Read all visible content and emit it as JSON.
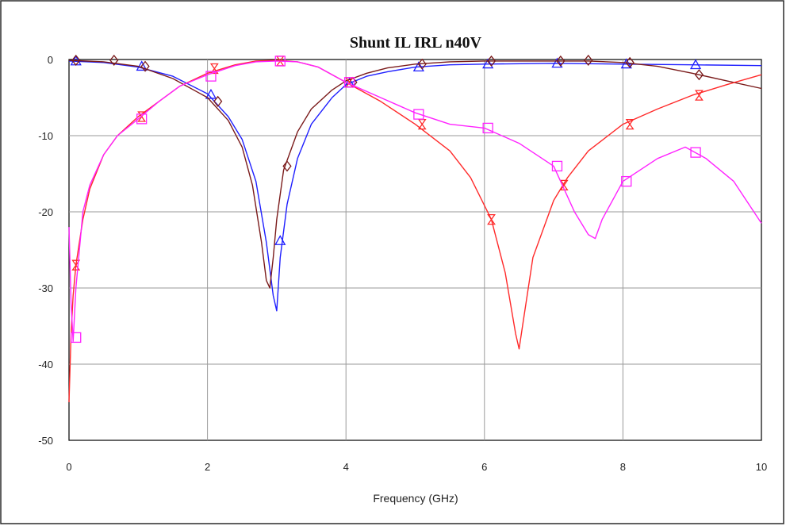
{
  "chart_data": {
    "type": "line",
    "title": "Shunt IL IRL n40V",
    "xlabel": "Frequency (GHz)",
    "ylabel": "",
    "xlim": [
      0,
      10
    ],
    "ylim": [
      -50,
      0
    ],
    "x_ticks": [
      "0",
      "2",
      "4",
      "6",
      "8",
      "10"
    ],
    "y_ticks": [
      "0",
      "-10",
      "-20",
      "-30",
      "-40",
      "-50"
    ],
    "grid": true,
    "legend": "none",
    "series": [
      {
        "color": "#1f1fff",
        "marker": "triangle",
        "x": [
          0,
          0.5,
          1.0,
          1.5,
          2.0,
          2.3,
          2.5,
          2.7,
          2.85,
          2.95,
          3.0,
          3.05,
          3.15,
          3.3,
          3.5,
          3.8,
          4.0,
          4.3,
          4.6,
          5.0,
          5.5,
          6.0,
          7.0,
          8.0,
          9.0,
          10.0
        ],
        "y": [
          -0.2,
          -0.4,
          -1.0,
          -2.2,
          -4.5,
          -7.5,
          -10.5,
          -16.0,
          -24.0,
          -31.0,
          -33.0,
          -26.0,
          -19.0,
          -13.0,
          -8.5,
          -5.0,
          -3.3,
          -2.2,
          -1.6,
          -1.0,
          -0.7,
          -0.6,
          -0.5,
          -0.6,
          -0.7,
          -0.8
        ],
        "marker_x": [
          0.1,
          1.05,
          2.05,
          3.05,
          4.05,
          5.05,
          6.05,
          7.05,
          8.05,
          9.05
        ],
        "marker_y": [
          -0.2,
          -0.9,
          -4.6,
          -23.8,
          -3.1,
          -1.0,
          -0.6,
          -0.5,
          -0.6,
          -0.7
        ]
      },
      {
        "color": "#7a1a1a",
        "marker": "diamond",
        "x": [
          0,
          0.5,
          1.0,
          1.5,
          2.0,
          2.3,
          2.5,
          2.65,
          2.78,
          2.85,
          2.9,
          2.95,
          3.0,
          3.1,
          3.3,
          3.5,
          3.8,
          4.0,
          4.3,
          4.6,
          5.0,
          5.5,
          6.0,
          7.0,
          7.5,
          8.0,
          8.5,
          9.0,
          9.5,
          10.0
        ],
        "y": [
          -0.1,
          -0.3,
          -0.9,
          -2.5,
          -5.0,
          -8.0,
          -11.5,
          -16.5,
          -24.0,
          -29.0,
          -30.0,
          -26.0,
          -21.0,
          -14.5,
          -9.5,
          -6.5,
          -4.0,
          -2.8,
          -1.8,
          -1.1,
          -0.6,
          -0.3,
          -0.2,
          -0.2,
          -0.2,
          -0.4,
          -0.9,
          -1.8,
          -2.8,
          -3.8
        ],
        "marker_x": [
          0.1,
          0.65,
          1.1,
          2.15,
          3.15,
          4.1,
          5.1,
          6.1,
          7.1,
          7.5,
          8.1,
          9.1
        ],
        "marker_y": [
          -0.1,
          -0.1,
          -0.9,
          -5.5,
          -14.0,
          -3.0,
          -0.6,
          -0.2,
          -0.2,
          -0.1,
          -0.4,
          -2.0
        ]
      },
      {
        "color": "#ff2a2a",
        "marker": "hourglass",
        "x": [
          0,
          0.03,
          0.06,
          0.1,
          0.15,
          0.2,
          0.3,
          0.5,
          0.7,
          1.0,
          1.3,
          1.6,
          2.0,
          2.4,
          2.7,
          3.0,
          3.3,
          3.6,
          4.0,
          4.5,
          5.0,
          5.5,
          5.8,
          6.1,
          6.3,
          6.45,
          6.5,
          6.55,
          6.7,
          7.0,
          7.2,
          7.5,
          8.0,
          8.5,
          9.0,
          9.5,
          10.0
        ],
        "y": [
          -45.0,
          -36.0,
          -31.0,
          -27.0,
          -24.0,
          -21.0,
          -17.0,
          -12.5,
          -10.0,
          -7.5,
          -5.5,
          -3.5,
          -1.8,
          -0.7,
          -0.2,
          -0.1,
          -0.3,
          -1.0,
          -3.0,
          -5.5,
          -8.5,
          -12.0,
          -15.5,
          -21.0,
          -28.0,
          -36.0,
          -38.0,
          -35.0,
          -26.0,
          -18.5,
          -15.5,
          -12.0,
          -8.5,
          -6.5,
          -4.7,
          -3.3,
          -2.0
        ],
        "marker_x": [
          0.1,
          1.05,
          2.1,
          3.05,
          4.05,
          5.1,
          6.1,
          7.15,
          8.1,
          9.1
        ],
        "marker_y": [
          -27.0,
          -7.5,
          -1.2,
          -0.2,
          -3.0,
          -8.5,
          -21.0,
          -16.5,
          -8.5,
          -4.7
        ]
      },
      {
        "color": "#ff22ff",
        "marker": "square",
        "x": [
          0,
          0.03,
          0.06,
          0.1,
          0.15,
          0.2,
          0.3,
          0.5,
          0.7,
          1.0,
          1.3,
          1.6,
          2.0,
          2.4,
          2.7,
          3.0,
          3.3,
          3.6,
          4.0,
          4.5,
          5.0,
          5.5,
          6.0,
          6.5,
          7.0,
          7.3,
          7.5,
          7.6,
          7.7,
          8.0,
          8.5,
          8.9,
          9.2,
          9.6,
          10.0
        ],
        "y": [
          -22.0,
          -32.0,
          -37.0,
          -30.0,
          -25.0,
          -20.0,
          -16.5,
          -12.5,
          -10.0,
          -7.8,
          -5.5,
          -3.5,
          -2.0,
          -0.8,
          -0.3,
          -0.2,
          -0.3,
          -1.0,
          -3.0,
          -5.0,
          -7.0,
          -8.5,
          -9.0,
          -11.0,
          -14.0,
          -20.0,
          -23.0,
          -23.5,
          -21.0,
          -16.0,
          -13.0,
          -11.5,
          -13.0,
          -16.0,
          -21.5
        ],
        "marker_x": [
          0.1,
          1.05,
          2.05,
          3.05,
          4.05,
          5.05,
          6.05,
          7.05,
          8.05,
          9.05
        ],
        "marker_y": [
          -36.5,
          -7.8,
          -2.2,
          -0.2,
          -3.0,
          -7.2,
          -9.0,
          -14.0,
          -16.0,
          -12.2
        ]
      }
    ]
  }
}
